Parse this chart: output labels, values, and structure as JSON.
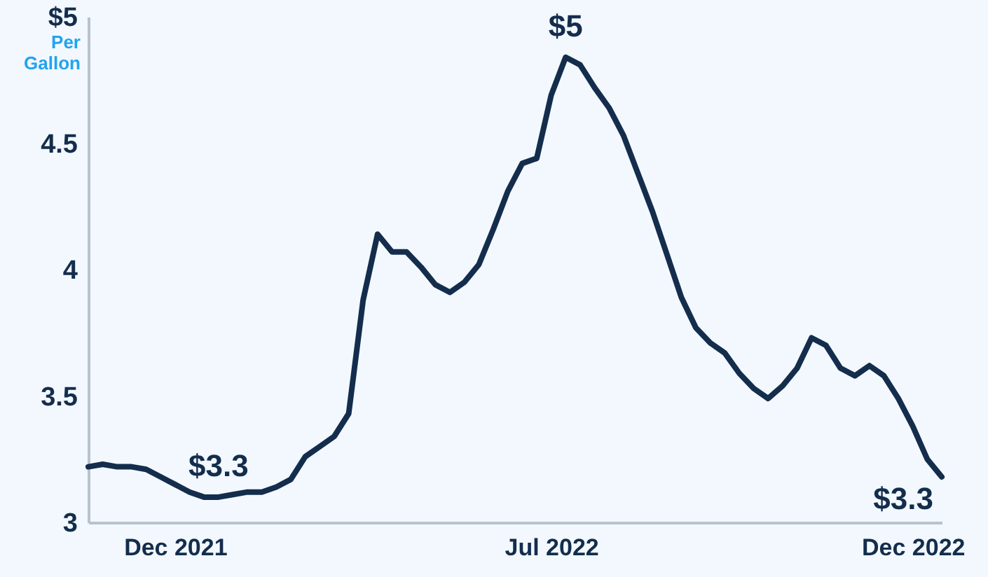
{
  "chart_data": {
    "type": "line",
    "ylabel": "Per Gallon",
    "categories": [
      null,
      null,
      null,
      null,
      null,
      null,
      "Dec 2021",
      null,
      null,
      null,
      null,
      null,
      null,
      null,
      null,
      null,
      null,
      null,
      null,
      null,
      null,
      null,
      null,
      null,
      null,
      null,
      null,
      null,
      null,
      null,
      null,
      null,
      "Jul 2022",
      null,
      null,
      null,
      null,
      null,
      null,
      null,
      null,
      null,
      null,
      null,
      null,
      null,
      null,
      null,
      null,
      null,
      null,
      null,
      null,
      null,
      null,
      null,
      null,
      "Dec 2022",
      null,
      null
    ],
    "series": [
      {
        "color": "#142d4c",
        "values": [
          3.22,
          3.23,
          3.22,
          3.22,
          3.21,
          3.18,
          3.15,
          3.12,
          3.1,
          3.1,
          3.11,
          3.12,
          3.12,
          3.14,
          3.17,
          3.26,
          3.3,
          3.34,
          3.43,
          3.88,
          4.14,
          4.07,
          4.07,
          4.01,
          3.94,
          3.91,
          3.95,
          4.02,
          4.16,
          4.31,
          4.42,
          4.44,
          4.69,
          4.84,
          4.81,
          4.72,
          4.64,
          4.53,
          4.38,
          4.23,
          4.06,
          3.89,
          3.77,
          3.71,
          3.67,
          3.59,
          3.53,
          3.49,
          3.54,
          3.61,
          3.73,
          3.7,
          3.61,
          3.58,
          3.62,
          3.58,
          3.49,
          3.38,
          3.25,
          3.18
        ]
      }
    ],
    "ylim": [
      3,
      5
    ],
    "yticks": [
      3,
      3.5,
      4,
      4.5,
      {
        "value": 5,
        "label": "$5"
      }
    ],
    "annotations": [
      {
        "text": "$3.3",
        "y": 3.1
      },
      {
        "text": "$5",
        "y": 4.84
      },
      "$3.3"
    ],
    "grid": false,
    "marker": "none",
    "line_style": "solid"
  }
}
